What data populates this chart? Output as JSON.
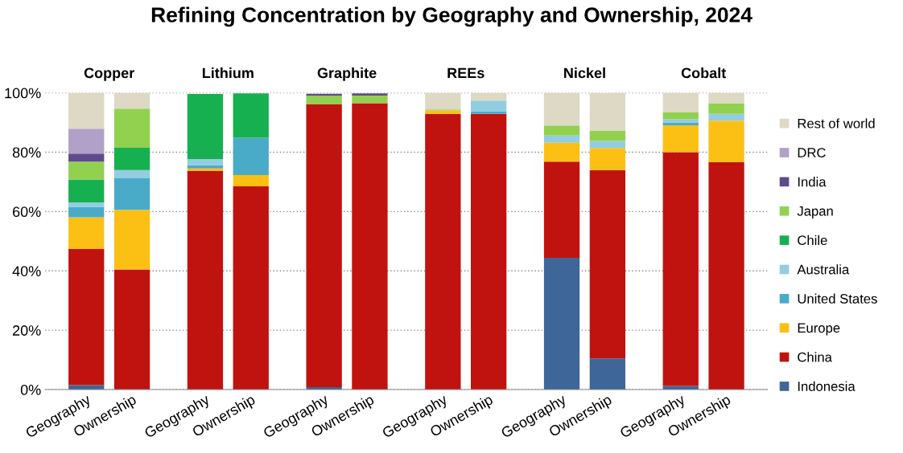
{
  "chart_data": {
    "type": "bar",
    "title": "Refining Concentration by Geography and Ownership, 2024",
    "categories": [
      "Geography",
      "Ownership",
      "Geography",
      "Ownership",
      "Geography",
      "Ownership",
      "Geography",
      "Ownership",
      "Geography",
      "Ownership",
      "Geography",
      "Ownership"
    ],
    "annotations": [
      "Copper",
      "Lithium",
      "Graphite",
      "REEs",
      "Nickel",
      "Cobalt"
    ],
    "stacked": true,
    "ylim": [
      0,
      100
    ],
    "yticks": [
      {
        "value": 0,
        "label": "0%"
      },
      {
        "value": 20,
        "label": "20%"
      },
      {
        "value": 40,
        "label": "40%"
      },
      {
        "value": 60,
        "label": "60%"
      },
      {
        "value": 80,
        "label": "80%"
      },
      {
        "value": 100,
        "label": "100%"
      }
    ],
    "grid": "y",
    "legend": "right",
    "series": [
      {
        "name": "Indonesia",
        "color": "#3f6699",
        "values": [
          1.5,
          null,
          null,
          null,
          0.8,
          null,
          null,
          null,
          44.4,
          10.5,
          1.2,
          null
        ]
      },
      {
        "name": "China",
        "color": "#c0130f",
        "values": [
          45.9,
          40.5,
          73.8,
          68.5,
          95.3,
          96.5,
          92.9,
          92.9,
          32.4,
          63.5,
          78.8,
          76.7
        ]
      },
      {
        "name": "Europe",
        "color": "#fcc015",
        "values": [
          10.7,
          20.1,
          0.7,
          3.8,
          null,
          null,
          1.2,
          null,
          6.4,
          7.4,
          9.1,
          13.9
        ]
      },
      {
        "name": "United States",
        "color": "#4aabc8",
        "values": [
          3.4,
          10.6,
          1.1,
          12.6,
          null,
          null,
          null,
          0.9,
          null,
          null,
          0.9,
          null
        ]
      },
      {
        "name": "Australia",
        "color": "#92cde0",
        "values": [
          1.6,
          2.8,
          2.1,
          null,
          null,
          null,
          null,
          3.6,
          2.4,
          2.4,
          1.1,
          2.3
        ]
      },
      {
        "name": "Chile",
        "color": "#17b050",
        "values": [
          7.7,
          7.5,
          21.9,
          14.9,
          null,
          null,
          null,
          null,
          null,
          null,
          null,
          null
        ]
      },
      {
        "name": "Japan",
        "color": "#92d050",
        "values": [
          6.0,
          13.2,
          null,
          null,
          2.9,
          2.6,
          0.3,
          null,
          3.4,
          3.4,
          2.3,
          3.6
        ]
      },
      {
        "name": "India",
        "color": "#5f4b8b",
        "values": [
          2.7,
          null,
          null,
          null,
          0.7,
          0.7,
          null,
          null,
          null,
          null,
          null,
          null
        ]
      },
      {
        "name": "DRC",
        "color": "#b1a0c7",
        "values": [
          8.4,
          null,
          null,
          null,
          null,
          null,
          null,
          null,
          null,
          null,
          null,
          null
        ]
      },
      {
        "name": "Rest of world",
        "color": "#ddd9c4",
        "values": [
          12.1,
          5.3,
          null,
          null,
          null,
          null,
          5.6,
          2.6,
          11.0,
          12.8,
          6.6,
          3.5
        ]
      }
    ]
  }
}
